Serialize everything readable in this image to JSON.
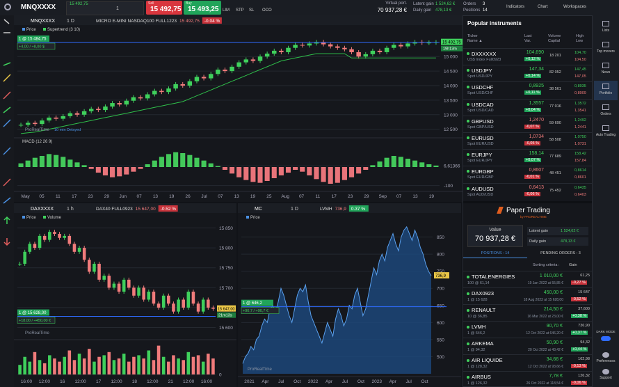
{
  "toolbar": {
    "symbol": "MNQXXXX",
    "field_price": "15 492,75",
    "quantity": "1",
    "sell_label": "Sell",
    "sell_price": "15 492,75",
    "buy_label": "Buy",
    "buy_price": "15 493,25",
    "order_types": [
      "LIM",
      "STP",
      "SL",
      "OCO"
    ],
    "virtual_portfolio_label": "Virtual port.",
    "virtual_portfolio": "70 937,28 €",
    "latent_gain_label": "Latent gain",
    "latent_gain": "1 524,62 €",
    "daily_gain_label": "Daily gain",
    "daily_gain": "478,13 €",
    "orders_label": "Orders",
    "orders": "3",
    "positions_label": "Positions",
    "positions": "14",
    "buttons": [
      "Indicators",
      "Chart",
      "Workspaces"
    ]
  },
  "main_chart": {
    "symbol": "MNQXXXX",
    "timeframe": "1 D",
    "name": "MICRO E-MINI NASDAQ100 FULL1223",
    "last": "15 492,75",
    "change": "-0.04 %",
    "legend": [
      "Price",
      "Supertrend (3 10)"
    ],
    "watermark": "ProRealTime",
    "delay": "10 min Delayed",
    "position_tag": "1 @ 15 484,75",
    "position_price": 15484.75,
    "position_gain": "+4,00 / +8,00 $",
    "timer": "19h13m",
    "ylim": [
      12300,
      15700
    ],
    "yticks": [
      {
        "value": 15000,
        "label": "15 000"
      },
      {
        "value": 14500,
        "label": "14 500"
      },
      {
        "value": 14000,
        "label": "14 000"
      },
      {
        "value": 13500,
        "label": "13 500"
      },
      {
        "value": 13000,
        "label": "13 000"
      },
      {
        "value": 12500,
        "label": "12 500"
      }
    ],
    "closes": [
      12650,
      12720,
      12680,
      12800,
      12900,
      12860,
      12950,
      13050,
      13000,
      13120,
      13200,
      13160,
      13280,
      13400,
      13350,
      13480,
      13600,
      13560,
      13700,
      13820,
      13780,
      13900,
      14050,
      14000,
      14150,
      14300,
      14250,
      14400,
      14550,
      14500,
      14650,
      14800,
      14900,
      14850,
      15000,
      15100,
      15200,
      15150,
      15300,
      15400,
      15380,
      15450,
      15500,
      15420,
      15350,
      15300,
      15250,
      15150,
      15000,
      15080,
      15200,
      15150,
      15300,
      15400,
      15350,
      15450,
      15500,
      15470,
      15480,
      15492.75
    ],
    "supertrend": [
      12350,
      12380,
      12400,
      12450,
      12500,
      12550,
      12600,
      12650,
      12700,
      12750,
      12800,
      12850,
      12900,
      12950,
      13000,
      13050,
      13100,
      13150,
      13200,
      13250,
      13300,
      13350,
      13400,
      13450,
      13550,
      13650,
      13750,
      13850,
      13950,
      14050,
      14150,
      14250,
      14350,
      14450,
      14550,
      14650,
      14750,
      14850,
      14900,
      14950,
      15000,
      15050,
      15100,
      15100,
      15100,
      15100,
      15100,
      14950,
      14950,
      14950,
      14950,
      14950,
      14950,
      14950,
      14950,
      14950,
      14950,
      14950,
      14950,
      14950
    ],
    "macd_title": "MACD (12 26 9)",
    "macd_ylim": [
      -120,
      120
    ],
    "macd_ticks": [
      {
        "value": 6.61366,
        "label": "6,61366"
      },
      -100
    ],
    "macd": [
      20,
      35,
      50,
      60,
      70,
      65,
      55,
      40,
      25,
      10,
      -10,
      -30,
      -45,
      -55,
      -50,
      -40,
      -25,
      -10,
      15,
      35,
      55,
      70,
      80,
      75,
      65,
      50,
      35,
      20,
      5,
      -15,
      -35,
      -55,
      -70,
      -80,
      -85,
      -75,
      -60,
      -45,
      -30,
      -15,
      -25,
      -45,
      -65,
      -80,
      -90,
      -85,
      -70,
      -55,
      -35,
      -15,
      10,
      30,
      50,
      60,
      55,
      45,
      35,
      25,
      15,
      8
    ],
    "xlabels": [
      "May",
      "05",
      "11",
      "17",
      "23",
      "29",
      "Jun",
      "07",
      "13",
      "19",
      "26",
      "Jul",
      "07",
      "13",
      "19",
      "25",
      "Aug",
      "07",
      "11",
      "17",
      "23",
      "29",
      "Sep",
      "07",
      "13",
      "19"
    ]
  },
  "dax_chart": {
    "symbol": "DAXXXXX",
    "timeframe": "1 h",
    "name": "DAX40 FULL0923",
    "last": "15 647,00",
    "change": "-0.52 %",
    "legend": [
      "Price",
      "Volume"
    ],
    "watermark": "ProRealTime",
    "position_tag": "1 @ 15 628,00",
    "position_price": 15628,
    "position_gain": "+18,00 / +450,00 €",
    "timer": "21m13s",
    "ylim": [
      15580,
      15870
    ],
    "yticks": [
      {
        "value": 15850,
        "label": "15 850"
      },
      {
        "value": 15800,
        "label": "15 800"
      },
      {
        "value": 15750,
        "label": "15 750"
      },
      {
        "value": 15700,
        "label": "15 700"
      },
      {
        "value": 15650,
        "label": "15 650"
      },
      {
        "value": 15600,
        "label": "15 600"
      }
    ],
    "closes": [
      15760,
      15790,
      15810,
      15800,
      15830,
      15820,
      15840,
      15835,
      15825,
      15830,
      15810,
      15790,
      15800,
      15770,
      15740,
      15760,
      15720,
      15730,
      15700,
      15710,
      15690,
      15720,
      15700,
      15680,
      15700,
      15670,
      15690,
      15660,
      15650,
      15680,
      15660,
      15640,
      15670,
      15650,
      15690,
      15660,
      15640,
      15670,
      15650,
      15647
    ],
    "volume_ylim": [
      0,
      100
    ],
    "volume_ticks": [
      0
    ],
    "volume": [
      30,
      55,
      40,
      70,
      45,
      35,
      60,
      50,
      40,
      55,
      75,
      45,
      65,
      50,
      80,
      40,
      55,
      60,
      70,
      45,
      50,
      65,
      40,
      55,
      60,
      50,
      75,
      45,
      90,
      55,
      40,
      60,
      50,
      45,
      70,
      55,
      60,
      40,
      65,
      50
    ],
    "xlabels": [
      "16:00",
      "12:00",
      "16",
      "12:00",
      "17",
      "12:00",
      "18",
      "12:00",
      "21",
      "12:00",
      "16:00"
    ]
  },
  "lvmh_chart": {
    "symbol": "MC",
    "timeframe": "1 D",
    "name": "LVMH",
    "last": "736,9",
    "change": "0.37 %",
    "legend": [
      "Price"
    ],
    "watermark": "ProRealTime",
    "position_tag": "1 @ 646,2",
    "position_price": 646.2,
    "position_gain": "+90,7 / +90,7 €",
    "ylim": [
      450,
      900
    ],
    "yticks": [
      850,
      800,
      750,
      700,
      650,
      600,
      550,
      500
    ],
    "values": [
      480,
      500,
      510,
      530,
      520,
      550,
      560,
      590,
      610,
      600,
      640,
      650,
      630,
      660,
      700,
      680,
      650,
      620,
      600,
      640,
      680,
      700,
      690,
      710,
      660,
      620,
      600,
      580,
      560,
      540,
      570,
      600,
      580,
      560,
      610,
      640,
      620,
      590,
      610,
      650,
      640,
      680,
      700,
      660,
      620,
      640,
      680,
      720,
      760,
      740,
      780,
      800,
      780,
      820,
      840,
      860,
      830,
      810,
      850,
      870,
      880,
      860,
      840,
      870,
      850,
      820,
      800,
      770,
      750,
      736.9
    ],
    "xlabels": [
      "2021",
      "Apr",
      "Jul",
      "Oct",
      "2022",
      "Apr",
      "Jul",
      "Oct",
      "2023",
      "Apr",
      "Jul",
      "Oct"
    ]
  },
  "instruments": {
    "title": "Popular instruments",
    "columns": [
      {
        "top": "Ticker",
        "bottom": "Name ▲"
      },
      {
        "top": "Last",
        "bottom": "Var."
      },
      {
        "top": "Volume",
        "bottom": "Capital"
      },
      {
        "top": "High",
        "bottom": "Low"
      }
    ],
    "rows": [
      {
        "ticker": "DXXXXXX",
        "desc": "US$ Index Full0923",
        "last": "104,690",
        "change": "+0,12 %",
        "volume": "18 201",
        "high": "104,70",
        "low": "104,50"
      },
      {
        "ticker": "USDJPY",
        "desc": "Spot USD/JPY",
        "last": "147,34",
        "change": "+0,14 %",
        "volume": "82 052",
        "high": "147,45",
        "low": "147,05"
      },
      {
        "ticker": "USDCHF",
        "desc": "Spot USD/CHF",
        "last": "0,8925",
        "change": "+0,11 %",
        "volume": "38 561",
        "high": "0,8935",
        "low": "0,8909"
      },
      {
        "ticker": "USDCAD",
        "desc": "Spot USD/CAD",
        "last": "1,3557",
        "change": "+0,04 %",
        "volume": "77 016",
        "high": "1,3572",
        "low": "1,3541"
      },
      {
        "ticker": "GBPUSD",
        "desc": "Spot GBP/USD",
        "last": "1,2470",
        "change": "-0,07 %",
        "volume": "59 690",
        "high": "1,2492",
        "low": "1,2441"
      },
      {
        "ticker": "EURUSD",
        "desc": "Spot EUR/USD",
        "last": "1,0734",
        "change": "-0,05 %",
        "volume": "58 508",
        "high": "1,0750",
        "low": "1,0731"
      },
      {
        "ticker": "EURJPY",
        "desc": "Spot EUR/JPY",
        "last": "158,14",
        "change": "+0,07 %",
        "volume": "77 689",
        "high": "158,42",
        "low": "157,84"
      },
      {
        "ticker": "EURGBP",
        "desc": "Spot EUR/GBP",
        "last": "0,8607",
        "change": "-0,01 %",
        "volume": "48 451",
        "high": "0,8614",
        "low": "0,8601"
      },
      {
        "ticker": "AUDUSD",
        "desc": "Spot AUD/USD",
        "last": "0,6413",
        "change": "-0,06 %",
        "volume": "75 452",
        "high": "0,6435",
        "low": "0,6403"
      }
    ]
  },
  "paper_trading": {
    "title": "Paper Trading",
    "subtitle": "by PROREALTIME",
    "value_label": "Value",
    "value": "70 937,28 €",
    "latent_gain_label": "Latent gain",
    "latent_gain": "1 524,62 €",
    "daily_gain_label": "Daily gain",
    "daily_gain": "478,13 €",
    "tab_positions": "POSITIONS : 14",
    "tab_pending": "PENDING ORDERS : 3",
    "sorting_label": "Sorting criteria :",
    "sorting_value": "Gain"
  },
  "positions": {
    "rows": [
      {
        "name": "TOTALENERGIES",
        "qty": "100 @ 61,14",
        "gain": "1 010,00 €",
        "date": "19 Jan 2022 at 55,85 €",
        "last": "61,25",
        "change": "-0,27 %"
      },
      {
        "name": "DAX0923",
        "qty": "1 @ 15 628",
        "gain": "450,00 €",
        "date": "18 Aug 2023 at 15 628,00",
        "last": "15 647",
        "change": "-0,52 %"
      },
      {
        "name": "RENAULT",
        "qty": "10 @ 36,85",
        "gain": "214,50 €",
        "date": "16 Mar 2022 at 23,00 €",
        "last": "37,600",
        "change": "+0,38 %"
      },
      {
        "name": "LVMH",
        "qty": "1 @ 646,2",
        "gain": "90,70 €",
        "date": "12 Oct 2022 at 646,20 €",
        "last": "736,90",
        "change": "+0,37 %"
      },
      {
        "name": "ARKEMA",
        "qty": "1 @ 94,32",
        "gain": "50,90 €",
        "date": "20 Oct 2022 at 43,42 €",
        "last": "94,32",
        "change": "+0,44 %"
      },
      {
        "name": "AIR LIQUIDE",
        "qty": "1 @ 128,32",
        "gain": "34,66 €",
        "date": "12 Oct 2022 at 93,66 €",
        "last": "162,98",
        "change": "-0,13 %"
      },
      {
        "name": "AIRBUS",
        "qty": "1 @ 126,32",
        "gain": "7,78 €",
        "date": "26 Oct 2022 at 118,54 €",
        "last": "126,32",
        "change": "-0,06 %"
      }
    ]
  },
  "sidebar": {
    "items": [
      "Lists",
      "Top movers",
      "News",
      "Portfolio",
      "Orders",
      "Auto Trading"
    ],
    "dark_mode": "DARK MODE",
    "bottom": [
      "Preferences",
      "Support"
    ]
  }
}
